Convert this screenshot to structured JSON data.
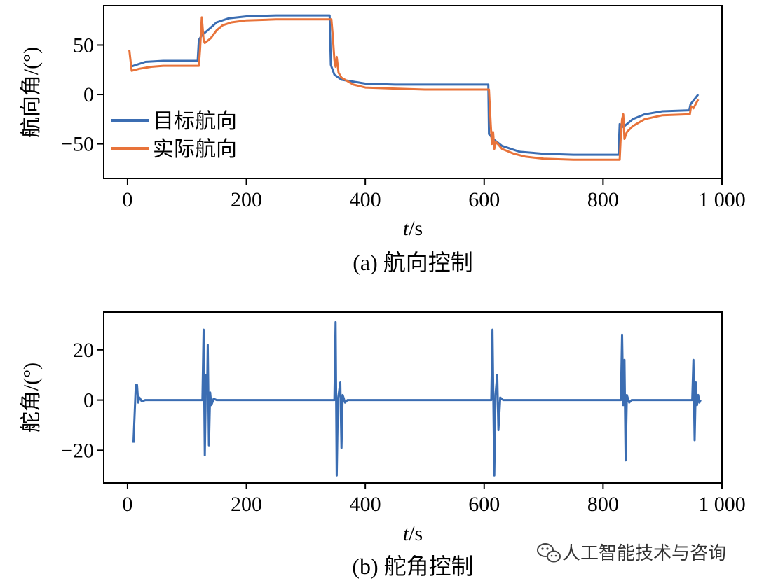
{
  "chart_data": [
    {
      "type": "line",
      "caption": "(a) 航向控制",
      "xlabel_italic": "t",
      "xlabel_unit": "/s",
      "ylabel": "航向角/(°)",
      "xlim": [
        -40,
        1000
      ],
      "ylim": [
        -85,
        90
      ],
      "xticks": [
        0,
        200,
        400,
        600,
        800,
        1000
      ],
      "xtick_labels": [
        "0",
        "200",
        "400",
        "600",
        "800",
        "1 000"
      ],
      "yticks": [
        50,
        0,
        -50
      ],
      "ytick_labels": [
        "50",
        "0",
        "−50"
      ],
      "legend_position": "lower-left",
      "series": [
        {
          "name": "目标航向",
          "color": "#3b6db2",
          "points": [
            [
              5,
              28
            ],
            [
              15,
              30
            ],
            [
              30,
              33
            ],
            [
              60,
              34
            ],
            [
              118,
              34
            ],
            [
              120,
              55
            ],
            [
              125,
              60
            ],
            [
              135,
              65
            ],
            [
              150,
              73
            ],
            [
              170,
              77
            ],
            [
              200,
              79
            ],
            [
              250,
              80
            ],
            [
              340,
              80
            ],
            [
              342,
              30
            ],
            [
              348,
              20
            ],
            [
              360,
              15
            ],
            [
              400,
              11
            ],
            [
              450,
              10
            ],
            [
              500,
              10
            ],
            [
              607,
              10
            ],
            [
              608,
              -40
            ],
            [
              615,
              -45
            ],
            [
              630,
              -52
            ],
            [
              660,
              -58
            ],
            [
              700,
              -60
            ],
            [
              750,
              -61
            ],
            [
              826,
              -61
            ],
            [
              828,
              -30
            ],
            [
              834,
              -33
            ],
            [
              850,
              -25
            ],
            [
              870,
              -20
            ],
            [
              900,
              -17
            ],
            [
              945,
              -16
            ],
            [
              947,
              -10
            ],
            [
              960,
              0
            ]
          ]
        },
        {
          "name": "实际航向",
          "color": "#e8733a",
          "points": [
            [
              3,
              45
            ],
            [
              7,
              24
            ],
            [
              20,
              26
            ],
            [
              40,
              28
            ],
            [
              60,
              29
            ],
            [
              120,
              29
            ],
            [
              122,
              45
            ],
            [
              125,
              78
            ],
            [
              128,
              55
            ],
            [
              130,
              52
            ],
            [
              140,
              57
            ],
            [
              150,
              65
            ],
            [
              160,
              70
            ],
            [
              175,
              73
            ],
            [
              200,
              75
            ],
            [
              250,
              76
            ],
            [
              343,
              76
            ],
            [
              345,
              62
            ],
            [
              348,
              35
            ],
            [
              350,
              28
            ],
            [
              352,
              38
            ],
            [
              355,
              22
            ],
            [
              360,
              17
            ],
            [
              380,
              10
            ],
            [
              400,
              7
            ],
            [
              450,
              6
            ],
            [
              500,
              5
            ],
            [
              608,
              5
            ],
            [
              611,
              -30
            ],
            [
              613,
              -50
            ],
            [
              615,
              -38
            ],
            [
              617,
              -55
            ],
            [
              620,
              -48
            ],
            [
              630,
              -55
            ],
            [
              650,
              -60
            ],
            [
              670,
              -63
            ],
            [
              700,
              -65
            ],
            [
              750,
              -66
            ],
            [
              828,
              -66
            ],
            [
              830,
              -40
            ],
            [
              832,
              -25
            ],
            [
              834,
              -20
            ],
            [
              836,
              -45
            ],
            [
              840,
              -38
            ],
            [
              850,
              -32
            ],
            [
              870,
              -25
            ],
            [
              900,
              -21
            ],
            [
              946,
              -20
            ],
            [
              948,
              -12
            ],
            [
              952,
              -14
            ],
            [
              960,
              -5
            ]
          ]
        }
      ]
    },
    {
      "type": "line",
      "caption": "(b) 舵角控制",
      "xlabel_italic": "t",
      "xlabel_unit": "/s",
      "ylabel": "舵角/(°)",
      "xlim": [
        -40,
        1000
      ],
      "ylim": [
        -33,
        35
      ],
      "xticks": [
        0,
        200,
        400,
        600,
        800,
        1000
      ],
      "xtick_labels": [
        "0",
        "200",
        "400",
        "600",
        "800",
        "1 000"
      ],
      "yticks": [
        20,
        0,
        -20
      ],
      "ytick_labels": [
        "20",
        "0",
        "−20"
      ],
      "series": [
        {
          "color": "#3b6db2",
          "points": [
            [
              10,
              -17
            ],
            [
              14,
              6
            ],
            [
              16,
              6
            ],
            [
              18,
              -1
            ],
            [
              20,
              1
            ],
            [
              24,
              -0.5
            ],
            [
              30,
              0
            ],
            [
              126,
              0
            ],
            [
              128,
              28
            ],
            [
              130,
              -22
            ],
            [
              132,
              10
            ],
            [
              134,
              5
            ],
            [
              135,
              22
            ],
            [
              137,
              -18
            ],
            [
              139,
              3
            ],
            [
              141,
              -2
            ],
            [
              145,
              0.5
            ],
            [
              150,
              0
            ],
            [
              348,
              0
            ],
            [
              350,
              31
            ],
            [
              352,
              -30
            ],
            [
              354,
              0
            ],
            [
              358,
              7
            ],
            [
              360,
              -19
            ],
            [
              362,
              2
            ],
            [
              366,
              -1
            ],
            [
              370,
              0
            ],
            [
              612,
              0
            ],
            [
              614,
              28
            ],
            [
              617,
              -30
            ],
            [
              619,
              2
            ],
            [
              622,
              10
            ],
            [
              624,
              -12
            ],
            [
              627,
              1
            ],
            [
              632,
              0
            ],
            [
              830,
              0
            ],
            [
              832,
              26
            ],
            [
              834,
              -2
            ],
            [
              836,
              16
            ],
            [
              838,
              -24
            ],
            [
              840,
              2
            ],
            [
              844,
              -1
            ],
            [
              848,
              0
            ],
            [
              950,
              0
            ],
            [
              952,
              16
            ],
            [
              954,
              -16
            ],
            [
              956,
              7
            ],
            [
              958,
              -2
            ],
            [
              960,
              2
            ],
            [
              962,
              -1
            ],
            [
              964,
              0
            ]
          ]
        }
      ]
    }
  ],
  "watermark": {
    "icon": "wechat-icon",
    "text": "人工智能技术与咨询"
  }
}
